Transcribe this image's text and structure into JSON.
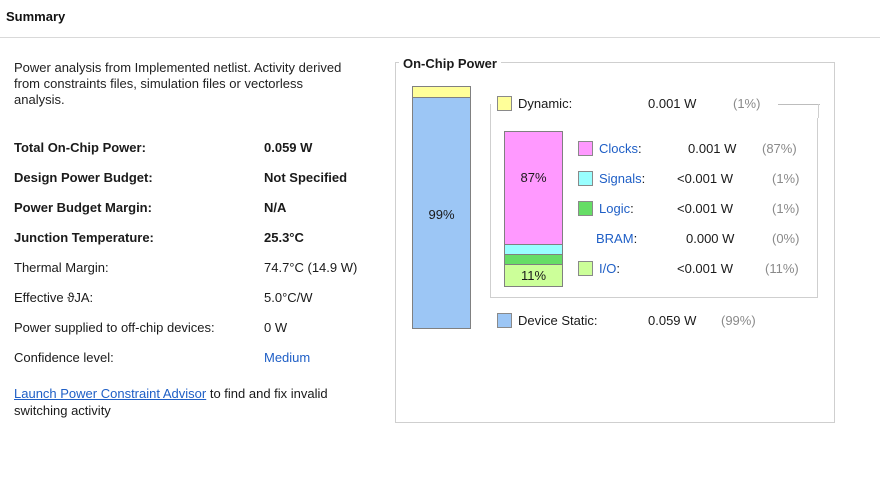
{
  "summary": {
    "title": "Summary",
    "description": "Power analysis from Implemented netlist. Activity derived from constraints files, simulation files or vectorless analysis.",
    "rows": [
      {
        "label": "Total On-Chip Power:",
        "value": "0.059 W"
      },
      {
        "label": "Design Power Budget:",
        "value": "Not Specified"
      },
      {
        "label": "Power Budget Margin:",
        "value": "N/A"
      },
      {
        "label": "Junction Temperature:",
        "value": "25.3°C"
      },
      {
        "label": "Thermal Margin:",
        "value": "74.7°C (14.9 W)"
      },
      {
        "label": "Effective ϑJA:",
        "value": "5.0°C/W"
      },
      {
        "label": "Power supplied to off-chip devices:",
        "value": "0 W"
      },
      {
        "label": "Confidence level:",
        "value": "Medium"
      }
    ],
    "advisor_link": "Launch Power Constraint Advisor",
    "advisor_text": " to find and fix invalid switching activity"
  },
  "on_chip": {
    "title": "On-Chip Power",
    "bar_main_pct": "99%",
    "dynamic": {
      "label": "Dynamic:",
      "value": "0.001 W",
      "pct": "(1%)",
      "color": "#ffff99"
    },
    "static": {
      "label": "Device Static:",
      "value": "0.059 W",
      "pct": "(99%)",
      "color": "#9cc6f5"
    },
    "bar_sub_top_pct": "87%",
    "bar_sub_bottom_pct": "11%",
    "breakdown": [
      {
        "label": "Clocks",
        "value": "0.001 W",
        "pct": "(87%)",
        "color": "#ff99ff",
        "swatch": true
      },
      {
        "label": "Signals",
        "value": "<0.001 W",
        "pct": "(1%)",
        "color": "#99ffff",
        "swatch": true
      },
      {
        "label": "Logic",
        "value": "<0.001 W",
        "pct": "(1%)",
        "color": "#66dd66",
        "swatch": true
      },
      {
        "label": "BRAM",
        "value": "0.000 W",
        "pct": "(0%)",
        "color": "",
        "swatch": false
      },
      {
        "label": "I/O",
        "value": "<0.001 W",
        "pct": "(11%)",
        "color": "#ccff99",
        "swatch": true
      }
    ]
  }
}
